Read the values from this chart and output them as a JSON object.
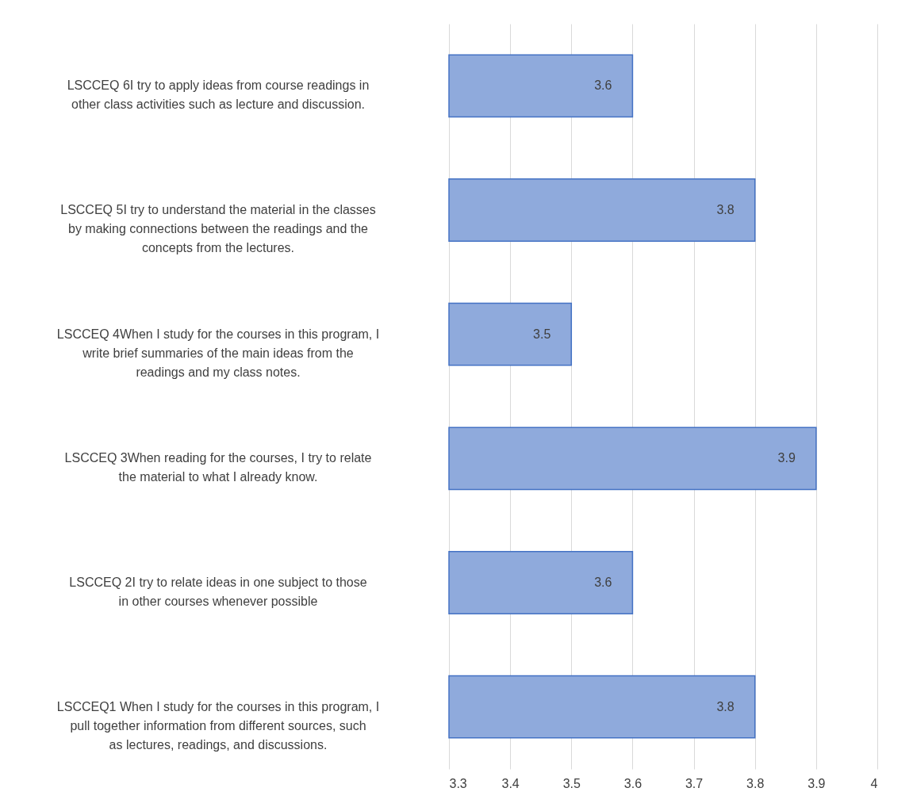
{
  "chart_data": {
    "type": "bar",
    "orientation": "horizontal",
    "categories": [
      "LSCCEQ 6I try to apply ideas from course readings in other class activities such as lecture and discussion.",
      "LSCCEQ 5I try to understand the material in the classes by making connections between the readings and the concepts from the lectures.",
      "LSCCEQ 4When I study for the courses in this program, I write brief summaries of the main ideas from the readings and my class notes.",
      "LSCCEQ 3When reading for the courses, I try to relate the material to what I already know.",
      "LSCCEQ 2I try to relate ideas in one subject to those in other courses whenever possible",
      "LSCCEQ1 When I study for the courses in this program, I pull together information from different sources, such as lectures, readings, and discussions."
    ],
    "values": [
      3.6,
      3.8,
      3.5,
      3.9,
      3.6,
      3.8
    ],
    "color": "#8faadc",
    "xlim": [
      3.3,
      4
    ],
    "xticks": [
      3.3,
      3.4,
      3.5,
      3.6,
      3.7,
      3.8,
      3.9,
      4
    ],
    "grid": "x",
    "data_labels": true
  }
}
